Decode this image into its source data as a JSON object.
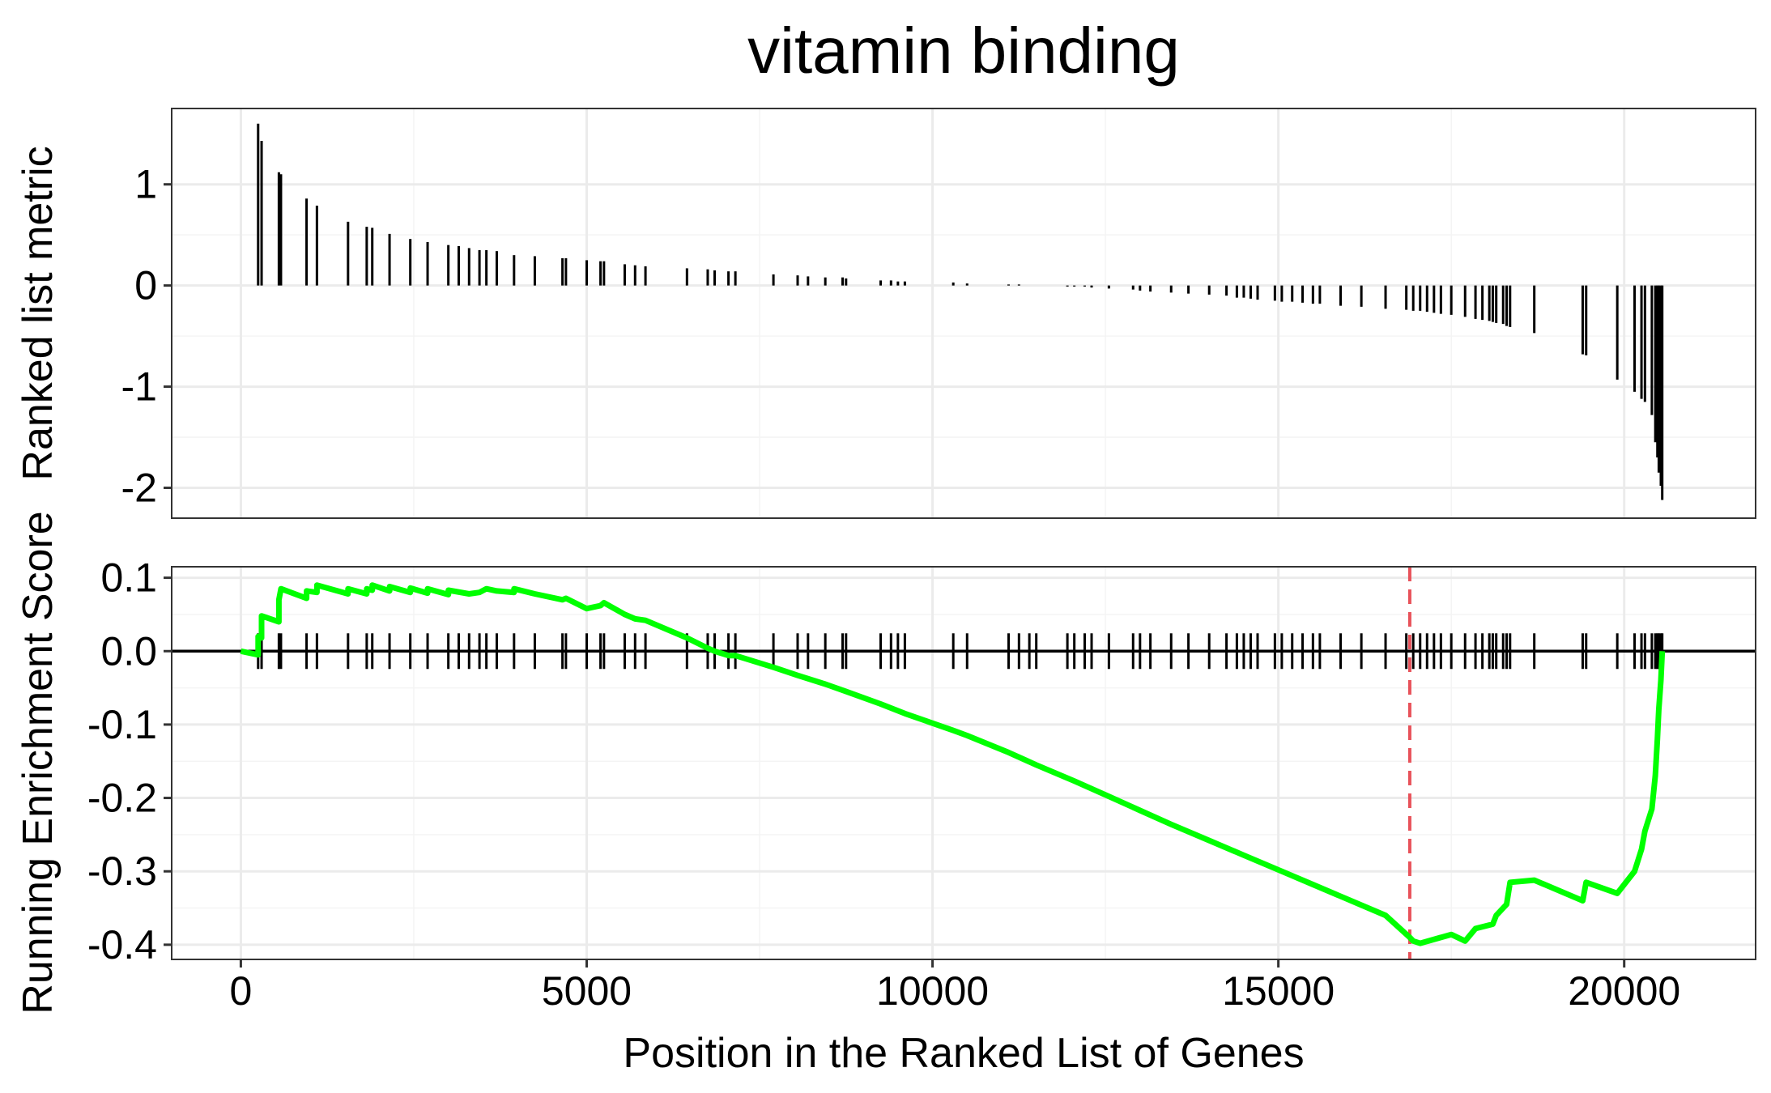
{
  "chart_data": {
    "type": "line",
    "title": "vitamin binding",
    "xlabel": "Position in the Ranked List of Genes",
    "xlim": [
      -1000,
      21900
    ],
    "x_ticks": [
      0,
      5000,
      10000,
      15000,
      20000
    ],
    "x_tick_labels": [
      "0",
      "5000",
      "10000",
      "15000",
      "20000"
    ],
    "grid": true,
    "panels": [
      {
        "name": "ranked-metric",
        "ylabel": "Ranked list metric",
        "ylim": [
          -2.3,
          1.75
        ],
        "y_ticks": [
          1,
          0,
          -1,
          -2
        ],
        "y_tick_labels": [
          "1",
          "0",
          "-1",
          "-2"
        ],
        "bars": [
          [
            250,
            1.6
          ],
          [
            300,
            1.43
          ],
          [
            550,
            1.12
          ],
          [
            580,
            1.1
          ],
          [
            950,
            0.86
          ],
          [
            1100,
            0.79
          ],
          [
            1550,
            0.63
          ],
          [
            1820,
            0.58
          ],
          [
            1900,
            0.57
          ],
          [
            2150,
            0.51
          ],
          [
            2450,
            0.46
          ],
          [
            2700,
            0.43
          ],
          [
            3000,
            0.4
          ],
          [
            3150,
            0.39
          ],
          [
            3300,
            0.37
          ],
          [
            3450,
            0.35
          ],
          [
            3550,
            0.35
          ],
          [
            3700,
            0.34
          ],
          [
            3950,
            0.3
          ],
          [
            4250,
            0.29
          ],
          [
            4650,
            0.27
          ],
          [
            4700,
            0.27
          ],
          [
            5000,
            0.25
          ],
          [
            5200,
            0.24
          ],
          [
            5250,
            0.24
          ],
          [
            5550,
            0.21
          ],
          [
            5700,
            0.2
          ],
          [
            5850,
            0.19
          ],
          [
            6450,
            0.17
          ],
          [
            6750,
            0.16
          ],
          [
            6850,
            0.15
          ],
          [
            7050,
            0.14
          ],
          [
            7150,
            0.14
          ],
          [
            7700,
            0.11
          ],
          [
            8050,
            0.1
          ],
          [
            8200,
            0.09
          ],
          [
            8450,
            0.08
          ],
          [
            8700,
            0.08
          ],
          [
            8750,
            0.07
          ],
          [
            9250,
            0.05
          ],
          [
            9400,
            0.05
          ],
          [
            9500,
            0.04
          ],
          [
            9600,
            0.04
          ],
          [
            10300,
            0.03
          ],
          [
            10500,
            0.02
          ],
          [
            11100,
            0.01
          ],
          [
            11250,
            0.01
          ],
          [
            11400,
            0.0
          ],
          [
            11500,
            0.0
          ],
          [
            11950,
            -0.01
          ],
          [
            12050,
            -0.01
          ],
          [
            12200,
            -0.01
          ],
          [
            12300,
            -0.02
          ],
          [
            12550,
            -0.03
          ],
          [
            12900,
            -0.04
          ],
          [
            13000,
            -0.05
          ],
          [
            13150,
            -0.06
          ],
          [
            13450,
            -0.07
          ],
          [
            13700,
            -0.08
          ],
          [
            14000,
            -0.09
          ],
          [
            14250,
            -0.1
          ],
          [
            14400,
            -0.12
          ],
          [
            14500,
            -0.12
          ],
          [
            14600,
            -0.13
          ],
          [
            14700,
            -0.14
          ],
          [
            14950,
            -0.15
          ],
          [
            15050,
            -0.16
          ],
          [
            15200,
            -0.16
          ],
          [
            15350,
            -0.17
          ],
          [
            15500,
            -0.18
          ],
          [
            15600,
            -0.18
          ],
          [
            15900,
            -0.2
          ],
          [
            16200,
            -0.21
          ],
          [
            16550,
            -0.23
          ],
          [
            16850,
            -0.24
          ],
          [
            16950,
            -0.25
          ],
          [
            17050,
            -0.25
          ],
          [
            17150,
            -0.26
          ],
          [
            17250,
            -0.27
          ],
          [
            17350,
            -0.28
          ],
          [
            17500,
            -0.29
          ],
          [
            17700,
            -0.31
          ],
          [
            17850,
            -0.33
          ],
          [
            17950,
            -0.34
          ],
          [
            18050,
            -0.35
          ],
          [
            18100,
            -0.36
          ],
          [
            18150,
            -0.37
          ],
          [
            18250,
            -0.38
          ],
          [
            18300,
            -0.4
          ],
          [
            18350,
            -0.41
          ],
          [
            18700,
            -0.47
          ],
          [
            19400,
            -0.68
          ],
          [
            19450,
            -0.69
          ],
          [
            19900,
            -0.93
          ],
          [
            20150,
            -1.05
          ],
          [
            20250,
            -1.12
          ],
          [
            20300,
            -1.15
          ],
          [
            20400,
            -1.28
          ],
          [
            20450,
            -1.55
          ],
          [
            20480,
            -1.7
          ],
          [
            20500,
            -1.85
          ],
          [
            20530,
            -1.98
          ],
          [
            20550,
            -2.12
          ]
        ]
      },
      {
        "name": "running-enrichment",
        "ylabel": "Running Enrichment Score",
        "ylim": [
          -0.42,
          0.115
        ],
        "y_ticks": [
          0.1,
          0.0,
          -0.1,
          -0.2,
          -0.3,
          -0.4
        ],
        "y_tick_labels": [
          "0.1",
          "0.0",
          "-0.1",
          "-0.2",
          "-0.3",
          "-0.4"
        ],
        "zero_line": 0,
        "peak_position": 16900,
        "hit_positions": [
          250,
          300,
          550,
          580,
          950,
          1100,
          1550,
          1820,
          1900,
          2150,
          2450,
          2700,
          3000,
          3150,
          3300,
          3450,
          3550,
          3700,
          3950,
          4250,
          4650,
          4700,
          5000,
          5200,
          5250,
          5550,
          5700,
          5850,
          6450,
          6750,
          6850,
          7050,
          7150,
          7700,
          8050,
          8200,
          8450,
          8700,
          8750,
          9250,
          9400,
          9500,
          9600,
          10300,
          10500,
          11100,
          11250,
          11400,
          11500,
          11950,
          12050,
          12200,
          12300,
          12550,
          12900,
          13000,
          13150,
          13450,
          13700,
          14000,
          14250,
          14400,
          14500,
          14600,
          14700,
          14950,
          15050,
          15200,
          15350,
          15500,
          15600,
          15900,
          16200,
          16550,
          16850,
          16950,
          17050,
          17150,
          17250,
          17350,
          17500,
          17700,
          17850,
          17950,
          18050,
          18100,
          18150,
          18250,
          18300,
          18350,
          18700,
          19400,
          19450,
          19900,
          20150,
          20250,
          20300,
          20400,
          20450,
          20480,
          20500,
          20530,
          20550
        ],
        "series": [
          {
            "color": "#00ff00",
            "points": [
              [
                0,
                0.0
              ],
              [
                250,
                -0.005
              ],
              [
                250,
                0.02
              ],
              [
                300,
                0.018
              ],
              [
                300,
                0.048
              ],
              [
                550,
                0.04
              ],
              [
                550,
                0.07
              ],
              [
                580,
                0.085
              ],
              [
                950,
                0.072
              ],
              [
                950,
                0.082
              ],
              [
                1100,
                0.08
              ],
              [
                1100,
                0.09
              ],
              [
                1550,
                0.078
              ],
              [
                1550,
                0.085
              ],
              [
                1820,
                0.078
              ],
              [
                1820,
                0.085
              ],
              [
                1900,
                0.083
              ],
              [
                1900,
                0.09
              ],
              [
                2150,
                0.082
              ],
              [
                2150,
                0.088
              ],
              [
                2450,
                0.08
              ],
              [
                2450,
                0.086
              ],
              [
                2700,
                0.079
              ],
              [
                2700,
                0.085
              ],
              [
                3000,
                0.077
              ],
              [
                3000,
                0.083
              ],
              [
                3300,
                0.078
              ],
              [
                3450,
                0.08
              ],
              [
                3550,
                0.085
              ],
              [
                3700,
                0.082
              ],
              [
                3950,
                0.08
              ],
              [
                3950,
                0.085
              ],
              [
                4250,
                0.078
              ],
              [
                4650,
                0.07
              ],
              [
                4700,
                0.072
              ],
              [
                5000,
                0.058
              ],
              [
                5200,
                0.062
              ],
              [
                5250,
                0.066
              ],
              [
                5550,
                0.05
              ],
              [
                5700,
                0.044
              ],
              [
                5850,
                0.042
              ],
              [
                6450,
                0.018
              ],
              [
                6750,
                0.004
              ],
              [
                6850,
                0.0
              ],
              [
                7050,
                -0.006
              ],
              [
                7150,
                -0.006
              ],
              [
                7700,
                -0.022
              ],
              [
                8050,
                -0.033
              ],
              [
                8450,
                -0.045
              ],
              [
                8750,
                -0.055
              ],
              [
                9250,
                -0.072
              ],
              [
                9600,
                -0.085
              ],
              [
                10300,
                -0.108
              ],
              [
                10500,
                -0.115
              ],
              [
                11100,
                -0.138
              ],
              [
                11500,
                -0.155
              ],
              [
                12050,
                -0.177
              ],
              [
                12550,
                -0.198
              ],
              [
                13000,
                -0.217
              ],
              [
                13450,
                -0.236
              ],
              [
                14000,
                -0.258
              ],
              [
                14500,
                -0.278
              ],
              [
                15050,
                -0.3
              ],
              [
                15500,
                -0.318
              ],
              [
                16000,
                -0.338
              ],
              [
                16550,
                -0.36
              ],
              [
                16900,
                -0.39
              ],
              [
                16950,
                -0.395
              ],
              [
                17050,
                -0.398
              ],
              [
                17500,
                -0.386
              ],
              [
                17700,
                -0.395
              ],
              [
                17850,
                -0.378
              ],
              [
                18100,
                -0.372
              ],
              [
                18150,
                -0.36
              ],
              [
                18300,
                -0.345
              ],
              [
                18350,
                -0.315
              ],
              [
                18700,
                -0.312
              ],
              [
                19400,
                -0.34
              ],
              [
                19450,
                -0.315
              ],
              [
                19900,
                -0.33
              ],
              [
                20150,
                -0.3
              ],
              [
                20250,
                -0.27
              ],
              [
                20300,
                -0.245
              ],
              [
                20400,
                -0.215
              ],
              [
                20450,
                -0.17
              ],
              [
                20480,
                -0.12
              ],
              [
                20500,
                -0.08
              ],
              [
                20530,
                -0.04
              ],
              [
                20550,
                0.0
              ]
            ]
          }
        ]
      }
    ]
  }
}
